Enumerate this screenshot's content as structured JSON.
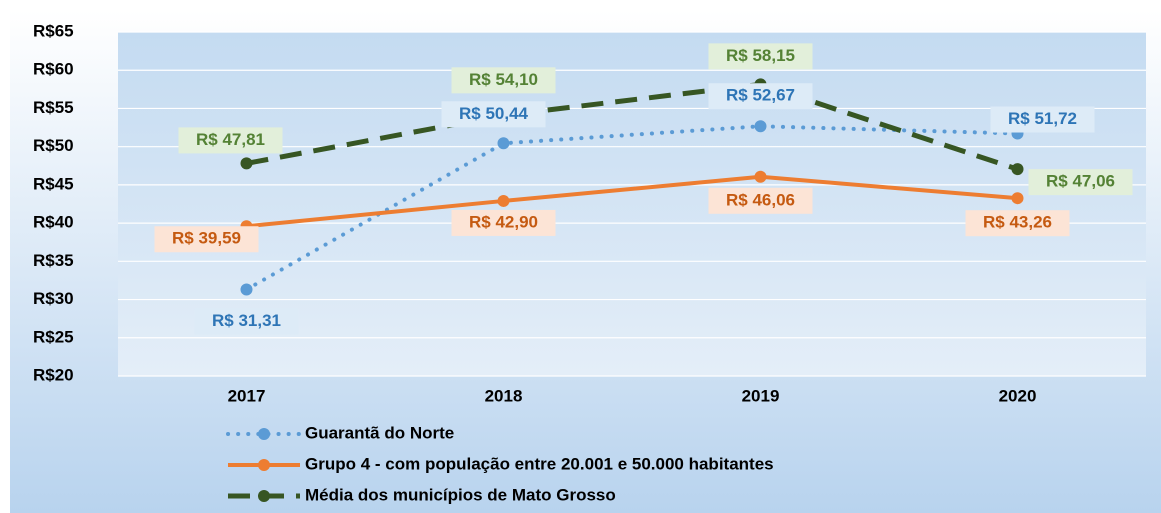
{
  "chart_data": {
    "type": "line",
    "categories": [
      "2017",
      "2018",
      "2019",
      "2020"
    ],
    "series": [
      {
        "name": "Guarantã do Norte",
        "color": "#5b9bd5",
        "values": [
          31.31,
          50.44,
          52.67,
          51.72
        ],
        "value_labels": [
          "R$ 31,31",
          "R$ 50,44",
          "R$ 52,67",
          "R$ 51,72"
        ]
      },
      {
        "name": "Grupo 4 - com população entre 20.001 e 50.000 habitantes",
        "color": "#ed7d31",
        "values": [
          39.59,
          42.9,
          46.06,
          43.26
        ],
        "value_labels": [
          "R$ 39,59",
          "R$ 42,90",
          "R$ 46,06",
          "R$ 43,26"
        ]
      },
      {
        "name": "Média dos municípios de Mato Grosso",
        "color": "#375623",
        "values": [
          47.81,
          54.1,
          58.15,
          47.06
        ],
        "value_labels": [
          "R$ 47,81",
          "R$ 54,10",
          "R$ 58,15",
          "R$ 47,06"
        ]
      }
    ],
    "ylim": [
      20,
      65
    ],
    "yticks": [
      {
        "value": 20,
        "label": "R$20"
      },
      {
        "value": 25,
        "label": "R$25"
      },
      {
        "value": 30,
        "label": "R$30"
      },
      {
        "value": 35,
        "label": "R$35"
      },
      {
        "value": 40,
        "label": "R$40"
      },
      {
        "value": 45,
        "label": "R$45"
      },
      {
        "value": 50,
        "label": "R$50"
      },
      {
        "value": 55,
        "label": "R$55"
      },
      {
        "value": 60,
        "label": "R$60"
      },
      {
        "value": 65,
        "label": "R$65"
      }
    ],
    "grid": true
  }
}
